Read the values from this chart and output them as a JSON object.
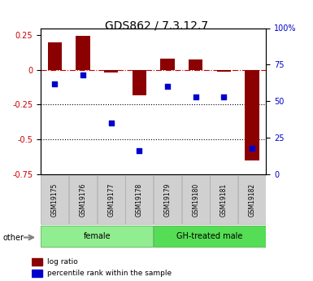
{
  "title": "GDS862 / 7.3.12.7",
  "samples": [
    "GSM19175",
    "GSM19176",
    "GSM19177",
    "GSM19178",
    "GSM19179",
    "GSM19180",
    "GSM19181",
    "GSM19182"
  ],
  "log_ratio": [
    0.2,
    0.245,
    -0.02,
    -0.18,
    0.08,
    0.075,
    -0.015,
    -0.65
  ],
  "percentile_rank": [
    62,
    68,
    35,
    16,
    60,
    53,
    53,
    18
  ],
  "groups": [
    {
      "label": "female",
      "start": 0,
      "end": 4,
      "color": "#90ee90"
    },
    {
      "label": "GH-treated male",
      "start": 4,
      "end": 8,
      "color": "#55dd55"
    }
  ],
  "bar_color": "#8b0000",
  "dot_color": "#0000cc",
  "ylim_left": [
    -0.75,
    0.3
  ],
  "ylim_right": [
    0,
    100
  ],
  "yticks_left": [
    0.25,
    0,
    -0.25,
    -0.5,
    -0.75
  ],
  "yticks_right": [
    100,
    75,
    50,
    25,
    0
  ],
  "hlines_dotted": [
    -0.25,
    -0.5
  ],
  "legend_labels": [
    "log ratio",
    "percentile rank within the sample"
  ],
  "other_label": "other",
  "background_color": "#ffffff"
}
